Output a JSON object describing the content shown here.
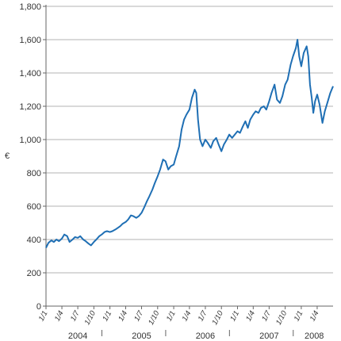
{
  "chart_data": {
    "type": "line",
    "title": "",
    "xlabel": "",
    "ylabel": "€",
    "ylim": [
      0,
      1800
    ],
    "yticks": [
      0,
      200,
      400,
      600,
      800,
      1000,
      1200,
      1400,
      1600,
      1800
    ],
    "ytick_labels": [
      "0",
      "200",
      "400",
      "600",
      "800",
      "1,000",
      "1,200",
      "1,400",
      "1,600",
      "1,800"
    ],
    "grid": true,
    "color": "#1f6fb4",
    "x_range": [
      "2004-01-01",
      "2008-07-01"
    ],
    "x_ticks": [
      {
        "date": "2004-01-01",
        "label": "1/1"
      },
      {
        "date": "2004-04-01",
        "label": "1/4"
      },
      {
        "date": "2004-07-01",
        "label": "1/7"
      },
      {
        "date": "2004-10-01",
        "label": "1/10"
      },
      {
        "date": "2005-01-01",
        "label": "1/1"
      },
      {
        "date": "2005-04-01",
        "label": "1/4"
      },
      {
        "date": "2005-07-01",
        "label": "1/7"
      },
      {
        "date": "2005-10-01",
        "label": "1/10"
      },
      {
        "date": "2006-01-01",
        "label": "1/1"
      },
      {
        "date": "2006-04-01",
        "label": "1/4"
      },
      {
        "date": "2006-07-01",
        "label": "1/7"
      },
      {
        "date": "2006-10-01",
        "label": "1/10"
      },
      {
        "date": "2007-01-01",
        "label": "1/1"
      },
      {
        "date": "2007-04-01",
        "label": "1/4"
      },
      {
        "date": "2007-07-01",
        "label": "1/7"
      },
      {
        "date": "2007-10-01",
        "label": "1/10"
      },
      {
        "date": "2008-01-01",
        "label": "1/1"
      },
      {
        "date": "2008-04-01",
        "label": "1/4"
      }
    ],
    "year_labels": [
      {
        "label": "2004",
        "date": "2004-07-01"
      },
      {
        "label": "2005",
        "date": "2005-07-01"
      },
      {
        "label": "2006",
        "date": "2006-07-01"
      },
      {
        "label": "2007",
        "date": "2007-07-01"
      },
      {
        "label": "2008",
        "date": "2008-03-15"
      }
    ],
    "series": [
      {
        "points": [
          [
            "2004-01-01",
            350
          ],
          [
            "2004-01-15",
            380
          ],
          [
            "2004-02-01",
            395
          ],
          [
            "2004-02-15",
            385
          ],
          [
            "2004-03-01",
            400
          ],
          [
            "2004-03-15",
            390
          ],
          [
            "2004-04-01",
            405
          ],
          [
            "2004-04-15",
            430
          ],
          [
            "2004-05-01",
            420
          ],
          [
            "2004-05-15",
            385
          ],
          [
            "2004-06-01",
            400
          ],
          [
            "2004-06-15",
            415
          ],
          [
            "2004-07-01",
            410
          ],
          [
            "2004-07-15",
            420
          ],
          [
            "2004-08-01",
            400
          ],
          [
            "2004-08-15",
            390
          ],
          [
            "2004-09-01",
            375
          ],
          [
            "2004-09-15",
            365
          ],
          [
            "2004-10-01",
            385
          ],
          [
            "2004-10-15",
            400
          ],
          [
            "2004-11-01",
            420
          ],
          [
            "2004-11-15",
            430
          ],
          [
            "2004-12-01",
            445
          ],
          [
            "2004-12-15",
            450
          ],
          [
            "2005-01-01",
            445
          ],
          [
            "2005-01-15",
            450
          ],
          [
            "2005-02-01",
            460
          ],
          [
            "2005-02-15",
            470
          ],
          [
            "2005-03-01",
            480
          ],
          [
            "2005-03-15",
            495
          ],
          [
            "2005-04-01",
            505
          ],
          [
            "2005-04-15",
            520
          ],
          [
            "2005-05-01",
            545
          ],
          [
            "2005-05-15",
            540
          ],
          [
            "2005-06-01",
            530
          ],
          [
            "2005-06-15",
            540
          ],
          [
            "2005-07-01",
            560
          ],
          [
            "2005-07-15",
            590
          ],
          [
            "2005-08-01",
            630
          ],
          [
            "2005-08-15",
            660
          ],
          [
            "2005-09-01",
            700
          ],
          [
            "2005-09-15",
            740
          ],
          [
            "2005-10-01",
            780
          ],
          [
            "2005-10-15",
            820
          ],
          [
            "2005-11-01",
            880
          ],
          [
            "2005-11-15",
            870
          ],
          [
            "2005-12-01",
            820
          ],
          [
            "2005-12-15",
            840
          ],
          [
            "2006-01-01",
            850
          ],
          [
            "2006-01-15",
            900
          ],
          [
            "2006-02-01",
            960
          ],
          [
            "2006-02-15",
            1060
          ],
          [
            "2006-03-01",
            1120
          ],
          [
            "2006-03-15",
            1150
          ],
          [
            "2006-04-01",
            1180
          ],
          [
            "2006-04-15",
            1250
          ],
          [
            "2006-05-01",
            1300
          ],
          [
            "2006-05-10",
            1280
          ],
          [
            "2006-05-20",
            1120
          ],
          [
            "2006-06-01",
            1000
          ],
          [
            "2006-06-15",
            960
          ],
          [
            "2006-07-01",
            1000
          ],
          [
            "2006-07-15",
            980
          ],
          [
            "2006-08-01",
            950
          ],
          [
            "2006-08-15",
            990
          ],
          [
            "2006-09-01",
            1010
          ],
          [
            "2006-09-15",
            970
          ],
          [
            "2006-10-01",
            930
          ],
          [
            "2006-10-15",
            970
          ],
          [
            "2006-11-01",
            1000
          ],
          [
            "2006-11-15",
            1030
          ],
          [
            "2006-12-01",
            1010
          ],
          [
            "2007-01-01",
            1050
          ],
          [
            "2007-01-15",
            1040
          ],
          [
            "2007-02-01",
            1080
          ],
          [
            "2007-02-15",
            1110
          ],
          [
            "2007-03-01",
            1070
          ],
          [
            "2007-03-15",
            1120
          ],
          [
            "2007-04-01",
            1150
          ],
          [
            "2007-04-15",
            1170
          ],
          [
            "2007-05-01",
            1160
          ],
          [
            "2007-05-15",
            1190
          ],
          [
            "2007-06-01",
            1200
          ],
          [
            "2007-06-15",
            1180
          ],
          [
            "2007-07-01",
            1230
          ],
          [
            "2007-07-15",
            1280
          ],
          [
            "2007-08-01",
            1330
          ],
          [
            "2007-08-15",
            1240
          ],
          [
            "2007-09-01",
            1220
          ],
          [
            "2007-09-15",
            1260
          ],
          [
            "2007-10-01",
            1330
          ],
          [
            "2007-10-15",
            1360
          ],
          [
            "2007-11-01",
            1450
          ],
          [
            "2007-11-15",
            1500
          ],
          [
            "2007-12-01",
            1550
          ],
          [
            "2007-12-10",
            1600
          ],
          [
            "2007-12-20",
            1500
          ],
          [
            "2008-01-01",
            1440
          ],
          [
            "2008-01-15",
            1520
          ],
          [
            "2008-02-01",
            1560
          ],
          [
            "2008-02-10",
            1500
          ],
          [
            "2008-02-20",
            1330
          ],
          [
            "2008-03-01",
            1250
          ],
          [
            "2008-03-10",
            1160
          ],
          [
            "2008-03-20",
            1230
          ],
          [
            "2008-04-01",
            1270
          ],
          [
            "2008-04-15",
            1210
          ],
          [
            "2008-05-01",
            1100
          ],
          [
            "2008-05-15",
            1170
          ],
          [
            "2008-06-01",
            1230
          ],
          [
            "2008-06-15",
            1280
          ],
          [
            "2008-07-01",
            1320
          ]
        ]
      }
    ]
  }
}
